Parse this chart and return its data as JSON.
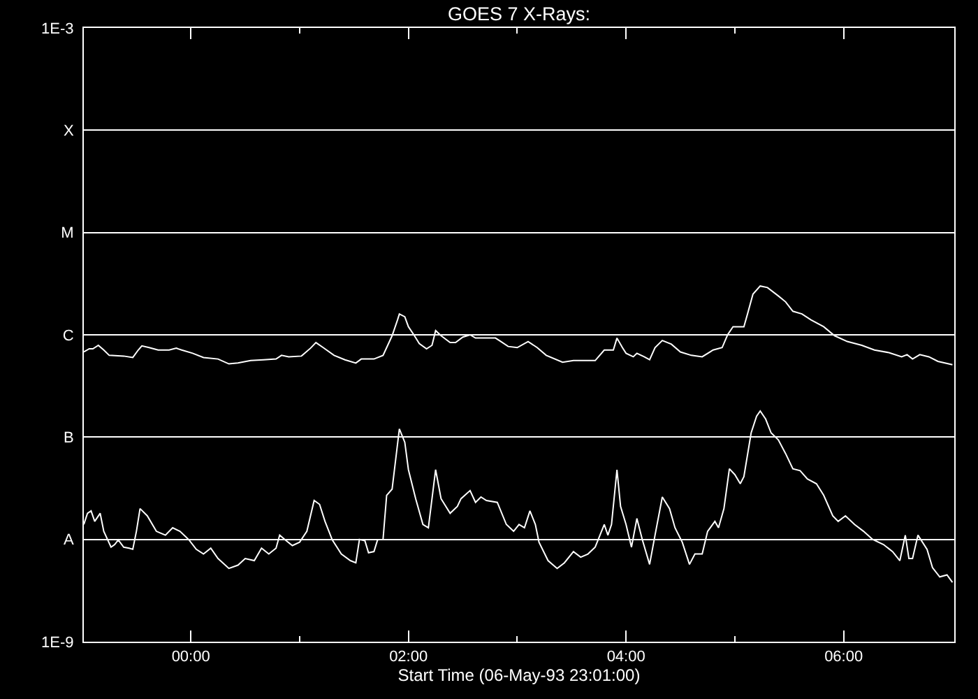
{
  "chart_data": {
    "type": "line",
    "title": "GOES 7 X-Rays:",
    "xlabel": "Start Time (06-May-93 23:01:00)",
    "xlim": [
      "--05-06T23:01",
      "--05-07T07:01"
    ],
    "xticks": [
      {
        "value": "--05-07T00:00",
        "label": "00:00"
      },
      {
        "value": "--05-07T01:00",
        "label": null
      },
      {
        "value": "--05-07T02:00",
        "label": "02:00"
      },
      {
        "value": "--05-07T03:00",
        "label": null
      },
      {
        "value": "--05-07T04:00",
        "label": "04:00"
      },
      {
        "value": "--05-07T05:00",
        "label": null
      },
      {
        "value": "--05-07T06:00",
        "label": "06:00"
      }
    ],
    "ylim": [
      1e-09,
      0.001
    ],
    "yticks": [
      {
        "value": 1e-09,
        "label": "1E-9"
      },
      {
        "value": 1e-08,
        "label": "A"
      },
      {
        "value": 1e-07,
        "label": "B"
      },
      {
        "value": 1e-06,
        "label": "C"
      },
      {
        "value": 1e-05,
        "label": "M"
      },
      {
        "value": 0.0001,
        "label": "X"
      },
      {
        "value": 0.001,
        "label": "1E-3"
      }
    ],
    "log": true,
    "grid": "y",
    "series": [
      {
        "color": "#ffffff",
        "x": [
          "--05-06T23:01",
          "--05-06T23:04",
          "--05-06T23:06",
          "--05-06T23:09",
          "--05-06T23:12",
          "--05-06T23:15",
          "--05-06T23:23",
          "--05-06T23:28",
          "--05-06T23:31",
          "--05-06T23:33",
          "--05-06T23:37",
          "--05-06T23:42",
          "--05-06T23:48",
          "--05-06T23:52",
          "--05-06T23:55",
          "--05-07T00:01",
          "--05-07T00:07",
          "--05-07T00:15",
          "--05-07T00:21",
          "--05-07T00:26",
          "--05-07T00:33",
          "--05-07T00:40",
          "--05-07T00:47",
          "--05-07T00:50",
          "--05-07T00:54",
          "--05-07T01:01",
          "--05-07T01:06",
          "--05-07T01:09",
          "--05-07T01:13",
          "--05-07T01:19",
          "--05-07T01:25",
          "--05-07T01:31",
          "--05-07T01:34",
          "--05-07T01:41",
          "--05-07T01:46",
          "--05-07T01:48",
          "--05-07T01:51",
          "--05-07T01:54",
          "--05-07T01:55",
          "--05-07T01:58",
          "--05-07T02:00",
          "--05-07T02:03",
          "--05-07T02:06",
          "--05-07T02:10",
          "--05-07T02:13",
          "--05-07T02:15",
          "--05-07T02:18",
          "--05-07T02:23",
          "--05-07T02:26",
          "--05-07T02:30",
          "--05-07T02:34",
          "--05-07T02:37",
          "--05-07T02:42",
          "--05-07T02:48",
          "--05-07T02:51",
          "--05-07T02:55",
          "--05-07T03:00",
          "--05-07T03:06",
          "--05-07T03:11",
          "--05-07T03:16",
          "--05-07T03:25",
          "--05-07T03:31",
          "--05-07T03:43",
          "--05-07T03:48",
          "--05-07T03:53",
          "--05-07T03:55",
          "--05-07T03:58",
          "--05-07T04:00",
          "--05-07T04:04",
          "--05-07T04:06",
          "--05-07T04:10",
          "--05-07T04:13",
          "--05-07T04:16",
          "--05-07T04:20",
          "--05-07T04:25",
          "--05-07T04:30",
          "--05-07T04:36",
          "--05-07T04:42",
          "--05-07T04:48",
          "--05-07T04:53",
          "--05-07T04:56",
          "--05-07T04:59",
          "--05-07T05:05",
          "--05-07T05:07",
          "--05-07T05:10",
          "--05-07T05:14",
          "--05-07T05:18",
          "--05-07T05:24",
          "--05-07T05:28",
          "--05-07T05:32",
          "--05-07T05:37",
          "--05-07T05:42",
          "--05-07T05:49",
          "--05-07T05:55",
          "--05-07T06:02",
          "--05-07T06:10",
          "--05-07T06:17",
          "--05-07T06:25",
          "--05-07T06:32",
          "--05-07T06:35",
          "--05-07T06:38",
          "--05-07T06:42",
          "--05-07T06:47",
          "--05-07T06:52",
          "--05-07T07:00"
        ],
        "values": [
          6.8e-07,
          7.3e-07,
          7.3e-07,
          7.9e-07,
          7.1e-07,
          6.3e-07,
          6.2e-07,
          6e-07,
          7.1e-07,
          7.8e-07,
          7.5e-07,
          7.1e-07,
          7.1e-07,
          7.4e-07,
          7.1e-07,
          6.6e-07,
          6e-07,
          5.8e-07,
          5.2e-07,
          5.3e-07,
          5.6e-07,
          5.7e-07,
          5.8e-07,
          6.3e-07,
          6.1e-07,
          6.2e-07,
          7.4e-07,
          8.4e-07,
          7.5e-07,
          6.3e-07,
          5.7e-07,
          5.3e-07,
          5.8e-07,
          5.8e-07,
          6.3e-07,
          7.5e-07,
          9.8e-07,
          1.4e-06,
          1.6e-06,
          1.5e-06,
          1.2e-06,
          1e-06,
          8.2e-07,
          7.3e-07,
          7.9e-07,
          1.1e-06,
          9.8e-07,
          8.4e-07,
          8.4e-07,
          9.5e-07,
          1e-06,
          9.3e-07,
          9.3e-07,
          9.3e-07,
          8.6e-07,
          7.7e-07,
          7.5e-07,
          8.6e-07,
          7.5e-07,
          6.3e-07,
          5.4e-07,
          5.6e-07,
          5.6e-07,
          7.1e-07,
          7.1e-07,
          9.3e-07,
          7.5e-07,
          6.6e-07,
          6.1e-07,
          6.6e-07,
          6.1e-07,
          5.7e-07,
          7.5e-07,
          8.8e-07,
          8.1e-07,
          6.8e-07,
          6.3e-07,
          6.1e-07,
          7.1e-07,
          7.5e-07,
          1e-06,
          1.2e-06,
          1.2e-06,
          1.6e-06,
          2.5e-06,
          3e-06,
          2.9e-06,
          2.4e-06,
          2.1e-06,
          1.7e-06,
          1.6e-06,
          1.4e-06,
          1.2e-06,
          9.8e-07,
          8.6e-07,
          7.9e-07,
          7.1e-07,
          6.7e-07,
          6.1e-07,
          6.4e-07,
          5.8e-07,
          6.4e-07,
          6.1e-07,
          5.5e-07,
          5.1e-07
        ]
      },
      {
        "color": "#ffffff",
        "x": [
          "--05-06T23:01",
          "--05-06T23:03",
          "--05-06T23:05",
          "--05-06T23:07",
          "--05-06T23:10",
          "--05-06T23:12",
          "--05-06T23:16",
          "--05-06T23:18",
          "--05-06T23:20",
          "--05-06T23:23",
          "--05-06T23:26",
          "--05-06T23:28",
          "--05-06T23:30",
          "--05-06T23:32",
          "--05-06T23:36",
          "--05-06T23:41",
          "--05-06T23:46",
          "--05-06T23:50",
          "--05-06T23:54",
          "--05-06T23:59",
          "--05-07T00:03",
          "--05-07T00:07",
          "--05-07T00:11",
          "--05-07T00:15",
          "--05-07T00:21",
          "--05-07T00:26",
          "--05-07T00:30",
          "--05-07T00:35",
          "--05-07T00:39",
          "--05-07T00:43",
          "--05-07T00:47",
          "--05-07T00:49",
          "--05-07T00:52",
          "--05-07T00:56",
          "--05-07T01:00",
          "--05-07T01:04",
          "--05-07T01:08",
          "--05-07T01:11",
          "--05-07T01:14",
          "--05-07T01:18",
          "--05-07T01:23",
          "--05-07T01:28",
          "--05-07T01:31",
          "--05-07T01:33",
          "--05-07T01:36",
          "--05-07T01:38",
          "--05-07T01:41",
          "--05-07T01:43",
          "--05-07T01:46",
          "--05-07T01:48",
          "--05-07T01:51",
          "--05-07T01:55",
          "--05-07T01:58",
          "--05-07T02:00",
          "--05-07T02:04",
          "--05-07T02:08",
          "--05-07T02:11",
          "--05-07T02:15",
          "--05-07T02:18",
          "--05-07T02:23",
          "--05-07T02:27",
          "--05-07T02:29",
          "--05-07T02:34",
          "--05-07T02:37",
          "--05-07T02:40",
          "--05-07T02:43",
          "--05-07T02:49",
          "--05-07T02:54",
          "--05-07T02:58",
          "--05-07T03:01",
          "--05-07T03:04",
          "--05-07T03:07",
          "--05-07T03:10",
          "--05-07T03:12",
          "--05-07T03:17",
          "--05-07T03:22",
          "--05-07T03:26",
          "--05-07T03:31",
          "--05-07T03:35",
          "--05-07T03:39",
          "--05-07T03:43",
          "--05-07T03:48",
          "--05-07T03:50",
          "--05-07T03:52",
          "--05-07T03:55",
          "--05-07T03:57",
          "--05-07T04:00",
          "--05-07T04:03",
          "--05-07T04:06",
          "--05-07T04:09",
          "--05-07T04:13",
          "--05-07T04:16",
          "--05-07T04:20",
          "--05-07T04:24",
          "--05-07T04:27",
          "--05-07T04:31",
          "--05-07T04:35",
          "--05-07T04:38",
          "--05-07T04:42",
          "--05-07T04:45",
          "--05-07T04:49",
          "--05-07T04:51",
          "--05-07T04:54",
          "--05-07T04:57",
          "--05-07T05:00",
          "--05-07T05:03",
          "--05-07T05:05",
          "--05-07T05:09",
          "--05-07T05:12",
          "--05-07T05:14",
          "--05-07T05:17",
          "--05-07T05:20",
          "--05-07T05:24",
          "--05-07T05:28",
          "--05-07T05:32",
          "--05-07T05:36",
          "--05-07T05:40",
          "--05-07T05:45",
          "--05-07T05:49",
          "--05-07T05:54",
          "--05-07T05:57",
          "--05-07T06:01",
          "--05-07T06:06",
          "--05-07T06:11",
          "--05-07T06:16",
          "--05-07T06:22",
          "--05-07T06:27",
          "--05-07T06:31",
          "--05-07T06:34",
          "--05-07T06:36",
          "--05-07T06:38",
          "--05-07T06:41",
          "--05-07T06:46",
          "--05-07T06:49",
          "--05-07T06:53",
          "--05-07T06:57",
          "--05-07T07:00"
        ],
        "values": [
          1.4e-08,
          1.8e-08,
          1.9e-08,
          1.5e-08,
          1.8e-08,
          1.2e-08,
          8.4e-09,
          8.9e-09,
          9.9e-09,
          8.4e-09,
          8.2e-09,
          8e-09,
          1.2e-08,
          2e-08,
          1.7e-08,
          1.2e-08,
          1.1e-08,
          1.3e-08,
          1.2e-08,
          9.9e-09,
          8e-09,
          7.2e-09,
          8.2e-09,
          6.5e-09,
          5.2e-09,
          5.6e-09,
          6.5e-09,
          6.2e-09,
          8.2e-09,
          7.2e-09,
          8.2e-09,
          1.1e-08,
          9.9e-09,
          8.7e-09,
          9.4e-09,
          1.2e-08,
          2.4e-08,
          2.2e-08,
          1.5e-08,
          9.9e-09,
          7.2e-09,
          6.2e-09,
          5.9e-09,
          1e-08,
          9.7e-09,
          7.4e-09,
          7.6e-09,
          9.9e-09,
          1e-08,
          2.7e-08,
          3.1e-08,
          1.2e-07,
          8.9e-08,
          4.8e-08,
          2.5e-08,
          1.4e-08,
          1.3e-08,
          4.8e-08,
          2.5e-08,
          1.8e-08,
          2.1e-08,
          2.5e-08,
          3e-08,
          2.3e-08,
          2.6e-08,
          2.4e-08,
          2.3e-08,
          1.4e-08,
          1.2e-08,
          1.4e-08,
          1.3e-08,
          1.9e-08,
          1.4e-08,
          9.4e-09,
          6.2e-09,
          5.2e-09,
          5.9e-09,
          7.6e-09,
          6.7e-09,
          7.2e-09,
          8.4e-09,
          1.4e-08,
          1.1e-08,
          1.4e-08,
          4.8e-08,
          2.1e-08,
          1.4e-08,
          8.4e-09,
          1.6e-08,
          9.9e-09,
          5.7e-09,
          1.1e-08,
          2.6e-08,
          2e-08,
          1.3e-08,
          9.4e-09,
          5.7e-09,
          7.2e-09,
          7.2e-09,
          1.2e-08,
          1.5e-08,
          1.3e-08,
          2e-08,
          4.9e-08,
          4.3e-08,
          3.5e-08,
          4.1e-08,
          1.1e-07,
          1.6e-07,
          1.8e-07,
          1.5e-07,
          1.1e-07,
          9.4e-08,
          6.9e-08,
          4.9e-08,
          4.7e-08,
          3.9e-08,
          3.5e-08,
          2.7e-08,
          1.7e-08,
          1.5e-08,
          1.7e-08,
          1.4e-08,
          1.2e-08,
          1e-08,
          8.9e-09,
          7.6e-09,
          6.2e-09,
          1.1e-08,
          6.5e-09,
          6.5e-09,
          1.1e-08,
          8e-09,
          5.3e-09,
          4.3e-09,
          4.5e-09,
          3.8e-09
        ]
      }
    ]
  }
}
